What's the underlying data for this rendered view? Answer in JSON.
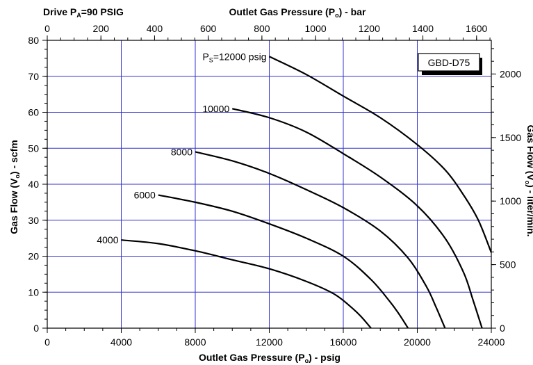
{
  "chart_data": {
    "type": "line",
    "model_label": "GBD-D75",
    "drive_label": {
      "prefix": "Drive P",
      "sub": "A",
      "suffix": "=90 PSIG"
    },
    "x_bottom": {
      "label": {
        "prefix": "Outlet Gas Pressure (P",
        "sub": "o",
        "suffix": ") - psig"
      },
      "range": [
        0,
        24000
      ],
      "ticks": [
        0,
        4000,
        8000,
        12000,
        16000,
        20000,
        24000
      ]
    },
    "x_top": {
      "label": {
        "prefix": "Outlet Gas Pressure (P",
        "sub": "o",
        "suffix": ") - bar"
      },
      "range": [
        0,
        1655
      ],
      "ticks": [
        0,
        200,
        400,
        600,
        800,
        1000,
        1200,
        1400,
        1600
      ]
    },
    "y_left": {
      "label": {
        "prefix": "Gas Flow (V",
        "sub": "o",
        "suffix": ") - scfm"
      },
      "range": [
        0,
        80
      ],
      "ticks": [
        0,
        10,
        20,
        30,
        40,
        50,
        60,
        70,
        80
      ]
    },
    "y_right": {
      "label": {
        "prefix": "Gas Flow (V",
        "sub": "o",
        "suffix": ") - liter/min."
      },
      "range": [
        0,
        2265
      ],
      "ticks": [
        0,
        500,
        1000,
        1500,
        2000
      ]
    },
    "grid": true,
    "series": [
      {
        "name": "4000",
        "label_prefix": "",
        "label_sub": "",
        "x": [
          4000,
          6000,
          8000,
          10000,
          12000,
          14000,
          15500,
          16500,
          17000,
          17500
        ],
        "y": [
          24.5,
          23.5,
          21.5,
          19,
          16.5,
          13,
          9.5,
          5.5,
          3,
          0
        ]
      },
      {
        "name": "6000",
        "label_prefix": "",
        "label_sub": "",
        "x": [
          6000,
          8000,
          10000,
          12000,
          14000,
          16000,
          17500,
          18500,
          19000,
          19500
        ],
        "y": [
          37,
          35,
          32.5,
          29,
          25,
          20,
          13.5,
          7.5,
          4,
          0
        ]
      },
      {
        "name": "8000",
        "label_prefix": "",
        "label_sub": "",
        "x": [
          8000,
          10000,
          12000,
          14000,
          16000,
          18000,
          19500,
          20500,
          21000,
          21500
        ],
        "y": [
          49,
          46.5,
          43,
          38.5,
          33.5,
          27,
          19.5,
          11.5,
          6,
          0
        ]
      },
      {
        "name": "10000",
        "label_prefix": "",
        "label_sub": "",
        "x": [
          10000,
          12000,
          14000,
          16000,
          18000,
          20000,
          21500,
          22500,
          23000,
          23500
        ],
        "y": [
          61,
          58.5,
          54.5,
          48.5,
          42,
          34,
          25,
          15.5,
          8,
          0
        ]
      },
      {
        "name": "12000",
        "label_prefix": "P",
        "label_sub": "S",
        "label_suffix": "=12000 psig",
        "x": [
          12000,
          14000,
          16000,
          18000,
          20000,
          21500,
          22500,
          23300,
          24000
        ],
        "y": [
          75.5,
          70.5,
          64.5,
          58.5,
          51,
          44,
          37,
          30,
          21
        ]
      }
    ]
  }
}
